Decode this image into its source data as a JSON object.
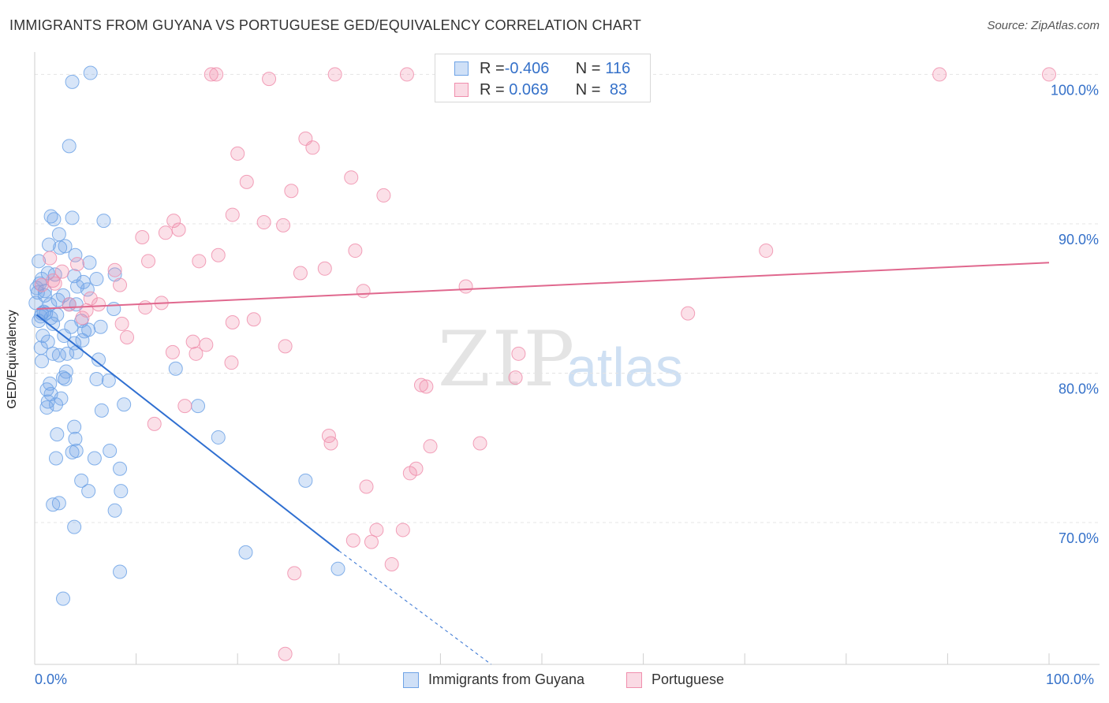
{
  "header": {
    "title": "IMMIGRANTS FROM GUYANA VS PORTUGUESE GED/EQUIVALENCY CORRELATION CHART",
    "source": "Source: ZipAtlas.com"
  },
  "watermark": {
    "zip": "ZIP",
    "atlas": "atlas"
  },
  "legend": {
    "rows": [
      {
        "r_label": "R = ",
        "r_value": "-0.406",
        "n_label": "N = ",
        "n_value": "116",
        "color": "#6fa3e6"
      },
      {
        "r_label": "R = ",
        "r_value": " 0.069",
        "n_label": "N = ",
        "n_value": " 83",
        "color": "#f08fad"
      }
    ]
  },
  "chart_data": {
    "type": "scatter",
    "title": "IMMIGRANTS FROM GUYANA VS PORTUGUESE GED/EQUIVALENCY CORRELATION CHART",
    "xlabel": "",
    "ylabel": "GED/Equivalency",
    "xlim": [
      0,
      100
    ],
    "ylim": [
      60.5,
      101.5
    ],
    "x_tick_labels": [
      "0.0%",
      "100.0%"
    ],
    "y_ticks": [
      70,
      80,
      90,
      100
    ],
    "y_tick_labels": [
      "70.0%",
      "80.0%",
      "90.0%",
      "100.0%"
    ],
    "grid": true,
    "legend_position": "bottom-center",
    "series": [
      {
        "name": "Immigrants from Guyana",
        "color": "#6fa3e6",
        "line_color": "#2f6fd1",
        "trend": {
          "x": [
            0.2,
            30.0
          ],
          "y": [
            83.9,
            68.1
          ]
        },
        "trend_dashed": {
          "x": [
            30.0,
            45.0
          ],
          "y": [
            68.1,
            60.5
          ]
        },
        "points": [
          [
            5.5,
            100.1
          ],
          [
            3.7,
            99.5
          ],
          [
            3.4,
            95.2
          ],
          [
            1.6,
            90.5
          ],
          [
            3.7,
            90.4
          ],
          [
            6.8,
            90.2
          ],
          [
            1.9,
            90.3
          ],
          [
            1.4,
            88.6
          ],
          [
            2.4,
            89.3
          ],
          [
            2.5,
            88.4
          ],
          [
            3.0,
            88.5
          ],
          [
            4.0,
            87.9
          ],
          [
            5.4,
            87.4
          ],
          [
            0.4,
            87.5
          ],
          [
            1.3,
            86.7
          ],
          [
            2.0,
            86.6
          ],
          [
            0.7,
            86.3
          ],
          [
            0.5,
            86.0
          ],
          [
            0.2,
            85.7
          ],
          [
            1.0,
            85.2
          ],
          [
            3.9,
            86.5
          ],
          [
            4.8,
            86.1
          ],
          [
            6.1,
            86.3
          ],
          [
            7.9,
            86.6
          ],
          [
            4.2,
            85.8
          ],
          [
            5.2,
            85.6
          ],
          [
            0.3,
            85.4
          ],
          [
            0.1,
            84.7
          ],
          [
            1.5,
            84.6
          ],
          [
            2.3,
            84.9
          ],
          [
            3.4,
            84.6
          ],
          [
            4.1,
            84.6
          ],
          [
            7.8,
            84.3
          ],
          [
            0.6,
            83.8
          ],
          [
            1.1,
            84.0
          ],
          [
            1.6,
            83.7
          ],
          [
            2.2,
            83.9
          ],
          [
            4.6,
            83.5
          ],
          [
            0.4,
            83.5
          ],
          [
            0.7,
            84.0
          ],
          [
            1.8,
            83.3
          ],
          [
            4.9,
            82.8
          ],
          [
            5.3,
            82.9
          ],
          [
            6.5,
            83.1
          ],
          [
            0.8,
            82.5
          ],
          [
            2.9,
            82.5
          ],
          [
            1.3,
            82.1
          ],
          [
            4.7,
            82.2
          ],
          [
            3.9,
            82.0
          ],
          [
            0.6,
            81.7
          ],
          [
            2.4,
            81.2
          ],
          [
            3.2,
            81.3
          ],
          [
            4.1,
            81.4
          ],
          [
            1.8,
            81.3
          ],
          [
            0.7,
            80.8
          ],
          [
            6.3,
            80.9
          ],
          [
            13.9,
            80.3
          ],
          [
            3.1,
            80.1
          ],
          [
            6.1,
            79.6
          ],
          [
            2.8,
            79.7
          ],
          [
            1.5,
            79.3
          ],
          [
            7.3,
            79.5
          ],
          [
            3.0,
            79.6
          ],
          [
            1.2,
            78.9
          ],
          [
            2.6,
            78.3
          ],
          [
            1.6,
            78.6
          ],
          [
            1.3,
            78.1
          ],
          [
            8.8,
            77.9
          ],
          [
            16.1,
            77.8
          ],
          [
            1.2,
            77.7
          ],
          [
            6.6,
            77.5
          ],
          [
            2.1,
            77.9
          ],
          [
            3.9,
            76.4
          ],
          [
            2.2,
            75.9
          ],
          [
            4.0,
            75.6
          ],
          [
            18.1,
            75.7
          ],
          [
            7.4,
            74.8
          ],
          [
            4.1,
            74.8
          ],
          [
            3.7,
            74.7
          ],
          [
            2.1,
            74.3
          ],
          [
            5.9,
            74.3
          ],
          [
            8.4,
            73.6
          ],
          [
            4.6,
            72.8
          ],
          [
            26.7,
            72.8
          ],
          [
            5.3,
            72.1
          ],
          [
            8.5,
            72.1
          ],
          [
            2.4,
            71.3
          ],
          [
            1.8,
            71.2
          ],
          [
            7.9,
            70.8
          ],
          [
            3.9,
            69.7
          ],
          [
            20.8,
            68.0
          ],
          [
            29.9,
            66.9
          ],
          [
            8.4,
            66.7
          ],
          [
            2.8,
            64.9
          ],
          [
            1.0,
            85.5
          ],
          [
            0.9,
            84.1
          ],
          [
            2.8,
            85.2
          ],
          [
            3.6,
            83.1
          ]
        ]
      },
      {
        "name": "Portuguese",
        "color": "#f08fad",
        "line_color": "#e0688e",
        "trend": {
          "x": [
            0.2,
            100.0
          ],
          "y": [
            84.3,
            87.4
          ]
        },
        "points": [
          [
            17.4,
            100.0
          ],
          [
            17.9,
            100.0
          ],
          [
            23.1,
            99.7
          ],
          [
            29.6,
            100.0
          ],
          [
            36.7,
            100.0
          ],
          [
            89.2,
            100.0
          ],
          [
            100.0,
            100.0
          ],
          [
            26.7,
            95.7
          ],
          [
            27.4,
            95.1
          ],
          [
            20.0,
            94.7
          ],
          [
            31.2,
            93.1
          ],
          [
            20.9,
            92.8
          ],
          [
            25.3,
            92.2
          ],
          [
            34.4,
            91.9
          ],
          [
            19.5,
            90.6
          ],
          [
            13.7,
            90.2
          ],
          [
            22.6,
            90.1
          ],
          [
            24.5,
            89.9
          ],
          [
            14.2,
            89.6
          ],
          [
            12.9,
            89.4
          ],
          [
            10.6,
            89.1
          ],
          [
            31.6,
            88.2
          ],
          [
            72.1,
            88.2
          ],
          [
            18.1,
            87.9
          ],
          [
            11.2,
            87.5
          ],
          [
            16.2,
            87.5
          ],
          [
            1.5,
            87.7
          ],
          [
            4.2,
            87.3
          ],
          [
            7.9,
            86.9
          ],
          [
            2.7,
            86.8
          ],
          [
            28.6,
            87.0
          ],
          [
            26.2,
            86.7
          ],
          [
            1.8,
            86.2
          ],
          [
            8.4,
            85.9
          ],
          [
            42.5,
            85.8
          ],
          [
            32.4,
            85.5
          ],
          [
            0.7,
            85.9
          ],
          [
            5.5,
            85.0
          ],
          [
            12.5,
            84.7
          ],
          [
            3.4,
            84.6
          ],
          [
            6.3,
            84.6
          ],
          [
            10.9,
            84.4
          ],
          [
            64.4,
            84.0
          ],
          [
            8.6,
            83.3
          ],
          [
            19.5,
            83.4
          ],
          [
            21.6,
            83.6
          ],
          [
            4.7,
            83.7
          ],
          [
            15.6,
            82.1
          ],
          [
            16.9,
            81.9
          ],
          [
            24.7,
            81.8
          ],
          [
            9.1,
            82.4
          ],
          [
            13.6,
            81.4
          ],
          [
            15.9,
            81.3
          ],
          [
            19.4,
            80.7
          ],
          [
            47.7,
            81.3
          ],
          [
            47.4,
            79.7
          ],
          [
            38.1,
            79.2
          ],
          [
            38.6,
            79.1
          ],
          [
            14.8,
            77.8
          ],
          [
            11.8,
            76.6
          ],
          [
            29.0,
            75.8
          ],
          [
            29.2,
            75.3
          ],
          [
            43.9,
            75.3
          ],
          [
            39.0,
            75.1
          ],
          [
            37.6,
            73.6
          ],
          [
            37.0,
            73.3
          ],
          [
            32.7,
            72.4
          ],
          [
            33.7,
            69.5
          ],
          [
            36.3,
            69.5
          ],
          [
            31.4,
            68.8
          ],
          [
            33.2,
            68.7
          ],
          [
            35.2,
            67.2
          ],
          [
            25.6,
            66.6
          ],
          [
            24.7,
            61.2
          ],
          [
            2.0,
            86.0
          ],
          [
            5.1,
            84.2
          ]
        ]
      }
    ]
  },
  "bottom_legend": {
    "items": [
      {
        "label": "Immigrants from Guyana",
        "color": "#6fa3e6"
      },
      {
        "label": "Portuguese",
        "color": "#f08fad"
      }
    ]
  }
}
